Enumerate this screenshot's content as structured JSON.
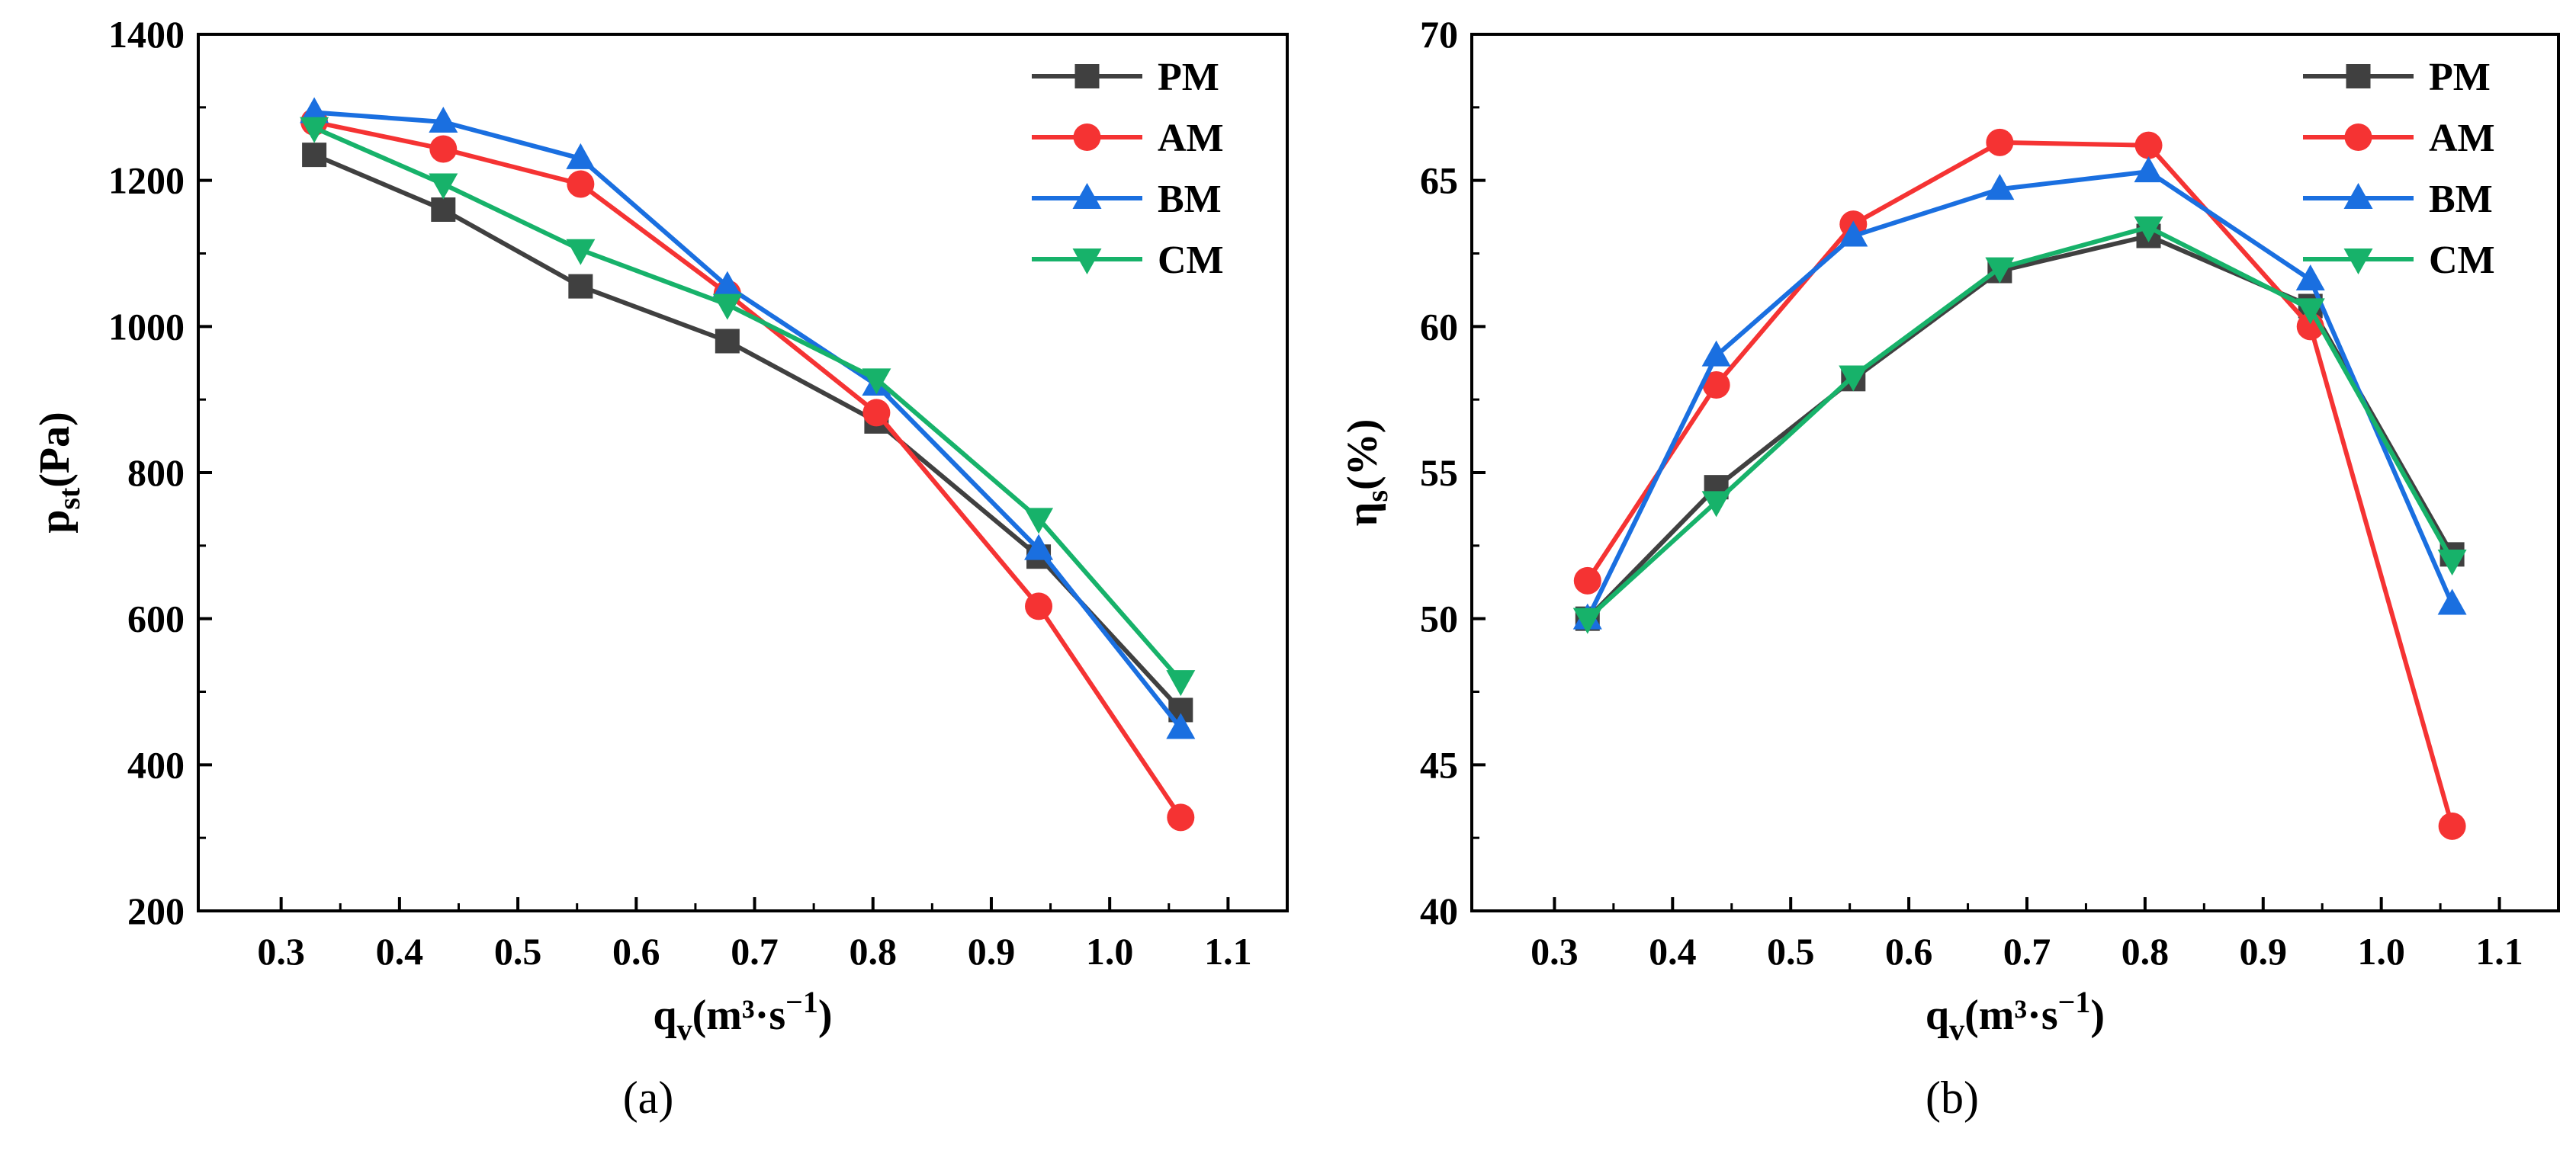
{
  "colors": {
    "PM": "#404040",
    "AM": "#f53333",
    "BM": "#1a6fe0",
    "CM": "#17b26a"
  },
  "chart_data": [
    {
      "id": "a",
      "type": "line",
      "panel_label": "(a)",
      "x": [
        0.328,
        0.437,
        0.553,
        0.677,
        0.803,
        0.94,
        1.06
      ],
      "xlim": [
        0.23,
        1.15
      ],
      "xticks": [
        "0.3",
        "0.4",
        "0.5",
        "0.6",
        "0.7",
        "0.8",
        "0.9",
        "1.0",
        "1.1"
      ],
      "xlabel": {
        "main": "q",
        "sub": "v",
        "rest": "(m³·s",
        "sup": "−1",
        "end": ")"
      },
      "ylim": [
        200,
        1400
      ],
      "yticks": [
        "200",
        "400",
        "600",
        "800",
        "1000",
        "1200",
        "1400"
      ],
      "ylabel": {
        "main": "p",
        "sub": "st",
        "rest": "(Pa)"
      },
      "legend_position": "top-right",
      "series": [
        {
          "name": "PM",
          "marker": "square",
          "values": [
            1235,
            1160,
            1055,
            980,
            870,
            685,
            475
          ]
        },
        {
          "name": "AM",
          "marker": "circle",
          "values": [
            1280,
            1243,
            1195,
            1045,
            882,
            617,
            328
          ]
        },
        {
          "name": "BM",
          "marker": "triangle",
          "values": [
            1293,
            1280,
            1230,
            1055,
            920,
            695,
            450
          ]
        },
        {
          "name": "CM",
          "marker": "tri-down",
          "values": [
            1272,
            1195,
            1105,
            1030,
            928,
            737,
            515
          ]
        }
      ]
    },
    {
      "id": "b",
      "type": "line",
      "panel_label": "(b)",
      "x": [
        0.328,
        0.437,
        0.553,
        0.677,
        0.803,
        0.94,
        1.06
      ],
      "xlim": [
        0.23,
        1.15
      ],
      "xticks": [
        "0.3",
        "0.4",
        "0.5",
        "0.6",
        "0.7",
        "0.8",
        "0.9",
        "1.0",
        "1.1"
      ],
      "xlabel": {
        "main": "q",
        "sub": "v",
        "rest": "(m³·s",
        "sup": "−1",
        "end": ")"
      },
      "ylim": [
        40,
        70
      ],
      "yticks": [
        "40",
        "45",
        "50",
        "55",
        "60",
        "65",
        "70"
      ],
      "ylabel": {
        "main": "η",
        "sub": "s",
        "rest": "(%)"
      },
      "legend_position": "top-right",
      "series": [
        {
          "name": "PM",
          "marker": "square",
          "values": [
            50.0,
            54.5,
            58.2,
            61.9,
            63.1,
            60.7,
            52.2
          ]
        },
        {
          "name": "AM",
          "marker": "circle",
          "values": [
            51.3,
            58.0,
            63.5,
            66.3,
            66.2,
            60.0,
            42.9
          ]
        },
        {
          "name": "BM",
          "marker": "triangle",
          "values": [
            50.0,
            59.0,
            63.1,
            64.7,
            65.3,
            61.6,
            50.5
          ]
        },
        {
          "name": "CM",
          "marker": "tri-down",
          "values": [
            50.0,
            54.0,
            58.3,
            62.0,
            63.4,
            60.6,
            52.0
          ]
        }
      ]
    }
  ]
}
